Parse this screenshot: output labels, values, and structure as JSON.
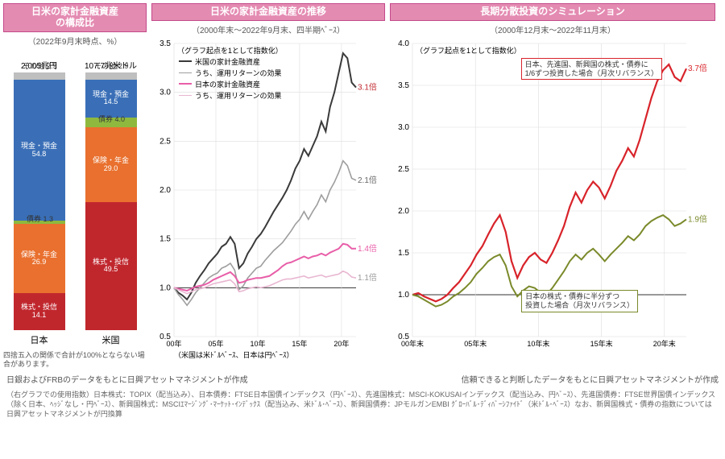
{
  "panel1": {
    "title": "日米の家計金融資産\nの構成比",
    "subtitle": "（2022年9月末時点、%）",
    "bars": [
      {
        "name": "日本",
        "total": "2,005兆円",
        "segments": [
          {
            "label": "株式・投信",
            "value": 14.1,
            "color": "#c0272d"
          },
          {
            "label": "保険・年金",
            "value": 26.9,
            "color": "#e9702e"
          },
          {
            "label": "債券",
            "value": 1.3,
            "color": "#8fb93e",
            "outside": true
          },
          {
            "label": "現金・預金",
            "value": 54.8,
            "color": "#3a6fb7"
          },
          {
            "label": "その他",
            "value": 2.9,
            "color": "#bfbfbf",
            "outside": true
          }
        ]
      },
      {
        "name": "米国",
        "total": "107.7兆米ドル",
        "segments": [
          {
            "label": "株式・投信",
            "value": 49.5,
            "color": "#c0272d"
          },
          {
            "label": "保険・年金",
            "value": 29.0,
            "color": "#e9702e"
          },
          {
            "label": "債券",
            "value": 4.0,
            "color": "#8fb93e",
            "outside": true
          },
          {
            "label": "現金・預金",
            "value": 14.5,
            "color": "#3a6fb7"
          },
          {
            "label": "その他",
            "value": 2.9,
            "color": "#bfbfbf",
            "outside": true
          }
        ]
      }
    ],
    "note": "四捨五入の関係で合計が100%とならない場合があります。"
  },
  "panel2": {
    "title": "日米の家計金融資産の推移",
    "subtitle": "（2000年末～2022年9月末、四半期ﾍﾞｰｽ）",
    "indexnote": "（グラフ起点を1として指数化）",
    "ylim": [
      0.5,
      3.5
    ],
    "ytick": 0.5,
    "xlabels": [
      "00年",
      "05年",
      "10年",
      "15年",
      "20年"
    ],
    "xnote": "（米国は米ﾄﾞﾙﾍﾞｰｽ、日本は円ﾍﾞｰｽ）",
    "series": [
      {
        "name": "米国の家計金融資産",
        "color": "#3a3a3a",
        "width": 2.0,
        "end_label": "3.1倍",
        "end_color": "#c0272d",
        "y": [
          1.0,
          0.95,
          0.92,
          0.88,
          0.95,
          1.05,
          1.12,
          1.18,
          1.25,
          1.3,
          1.35,
          1.42,
          1.45,
          1.52,
          1.45,
          1.2,
          1.25,
          1.35,
          1.42,
          1.5,
          1.55,
          1.62,
          1.7,
          1.78,
          1.85,
          1.92,
          2.0,
          2.1,
          2.22,
          2.3,
          2.42,
          2.35,
          2.45,
          2.55,
          2.7,
          2.6,
          2.85,
          3.0,
          3.2,
          3.4,
          3.35,
          3.1,
          3.05
        ]
      },
      {
        "name": "うち、運用リターンの効果",
        "color": "#9e9e9e",
        "width": 1.6,
        "end_label": "2.1倍",
        "end_color": "#666",
        "y": [
          1.0,
          0.93,
          0.88,
          0.82,
          0.88,
          0.95,
          1.0,
          1.05,
          1.1,
          1.13,
          1.15,
          1.2,
          1.22,
          1.25,
          1.18,
          0.98,
          1.02,
          1.1,
          1.15,
          1.2,
          1.22,
          1.28,
          1.33,
          1.38,
          1.42,
          1.46,
          1.52,
          1.58,
          1.65,
          1.7,
          1.78,
          1.7,
          1.78,
          1.85,
          1.95,
          1.88,
          2.0,
          2.08,
          2.18,
          2.3,
          2.25,
          2.12,
          2.1
        ]
      },
      {
        "name": "日本の家計金融資産",
        "color": "#e85ea8",
        "width": 2.0,
        "end_label": "1.4倍",
        "end_color": "#e85ea8",
        "y": [
          1.0,
          0.99,
          0.98,
          0.97,
          0.99,
          1.01,
          1.02,
          1.03,
          1.05,
          1.08,
          1.1,
          1.12,
          1.14,
          1.16,
          1.12,
          1.05,
          1.06,
          1.08,
          1.09,
          1.1,
          1.1,
          1.11,
          1.12,
          1.15,
          1.18,
          1.22,
          1.25,
          1.26,
          1.28,
          1.3,
          1.32,
          1.3,
          1.32,
          1.33,
          1.35,
          1.33,
          1.36,
          1.38,
          1.4,
          1.45,
          1.44,
          1.4,
          1.4
        ]
      },
      {
        "name": "うち、運用リターンの効果",
        "color": "#e8b7d1",
        "width": 1.6,
        "end_label": "1.1倍",
        "end_color": "#999",
        "y": [
          1.0,
          0.98,
          0.96,
          0.94,
          0.96,
          0.98,
          0.99,
          1.0,
          1.02,
          1.04,
          1.05,
          1.06,
          1.07,
          1.08,
          1.04,
          0.96,
          0.97,
          0.99,
          1.0,
          1.01,
          1.0,
          1.01,
          1.02,
          1.04,
          1.06,
          1.08,
          1.09,
          1.09,
          1.1,
          1.11,
          1.12,
          1.1,
          1.11,
          1.12,
          1.13,
          1.11,
          1.12,
          1.13,
          1.14,
          1.17,
          1.15,
          1.11,
          1.1
        ]
      }
    ]
  },
  "panel3": {
    "title": "長期分散投資のシミュレーション",
    "subtitle": "（2000年12月末～2022年11月末）",
    "indexnote": "（グラフ起点を1として指数化）",
    "ylim": [
      0.5,
      4.0
    ],
    "ytick": 0.5,
    "xlabels": [
      "00年末",
      "05年末",
      "10年末",
      "15年末",
      "20年末"
    ],
    "series": [
      {
        "color": "#d8232a",
        "width": 2.2,
        "end_label": "3.7倍",
        "end_color": "#d8232a",
        "box": "日本、先進国、新興国の株式・債券に\n1/6ずつ投資した場合（月次リバランス）",
        "box_pos": "top",
        "y": [
          1.0,
          1.02,
          0.98,
          0.95,
          0.92,
          0.95,
          1.0,
          1.08,
          1.15,
          1.25,
          1.35,
          1.48,
          1.58,
          1.72,
          1.85,
          1.95,
          1.75,
          1.4,
          1.2,
          1.35,
          1.45,
          1.5,
          1.42,
          1.38,
          1.5,
          1.65,
          1.82,
          2.05,
          2.22,
          2.1,
          2.25,
          2.35,
          2.28,
          2.15,
          2.3,
          2.48,
          2.6,
          2.75,
          2.65,
          2.85,
          3.1,
          3.35,
          3.55,
          3.68,
          3.75,
          3.6,
          3.55,
          3.7
        ]
      },
      {
        "color": "#7a8a2a",
        "width": 2.0,
        "end_label": "1.9倍",
        "end_color": "#7a8a2a",
        "box": "日本の株式・債券に半分ずつ\n投資した場合（月次リバランス）",
        "box_pos": "bottom",
        "y": [
          1.0,
          0.98,
          0.94,
          0.9,
          0.86,
          0.88,
          0.92,
          0.98,
          1.02,
          1.08,
          1.15,
          1.25,
          1.32,
          1.4,
          1.45,
          1.48,
          1.35,
          1.1,
          0.98,
          1.05,
          1.1,
          1.08,
          1.02,
          1.0,
          1.08,
          1.18,
          1.28,
          1.4,
          1.48,
          1.42,
          1.5,
          1.55,
          1.48,
          1.4,
          1.48,
          1.55,
          1.62,
          1.7,
          1.65,
          1.72,
          1.82,
          1.88,
          1.92,
          1.95,
          1.9,
          1.82,
          1.85,
          1.9
        ]
      }
    ]
  },
  "footer_left": "日銀およびFRBのデータをもとに日興アセットマネジメントが作成",
  "footer_right": "信頼できると判断したデータをもとに日興アセットマネジメントが作成",
  "footer_detail": "（右グラフでの使用指数）日本株式：TOPIX（配当込み）、日本債券：FTSE日本国債インデックス（円ﾍﾞｰｽ）、先進国株式：MSCI-KOKUSAIインデックス（配当込み、円ﾍﾞｰｽ）、先進国債券：FTSE世界国債インデックス（除く日本、ﾍｯｼﾞなし・円ﾍﾞｰｽ）、新興国株式：MSCIｴﾏｰｼﾞﾝｸﾞ･ﾏｰｹｯﾄ･ｲﾝﾃﾞｯｸｽ（配当込み、米ﾄﾞﾙ･ﾍﾞｰｽ）、新興国債券：JPモルガンEMBI ｸﾞﾛｰﾊﾞﾙ･ﾃﾞｨﾊﾞｰｼﾌｧｲﾄﾞ（米ﾄﾞﾙ･ﾍﾞｰｽ）なお、新興国株式・債券の指数については日興アセットマネジメントが円換算"
}
